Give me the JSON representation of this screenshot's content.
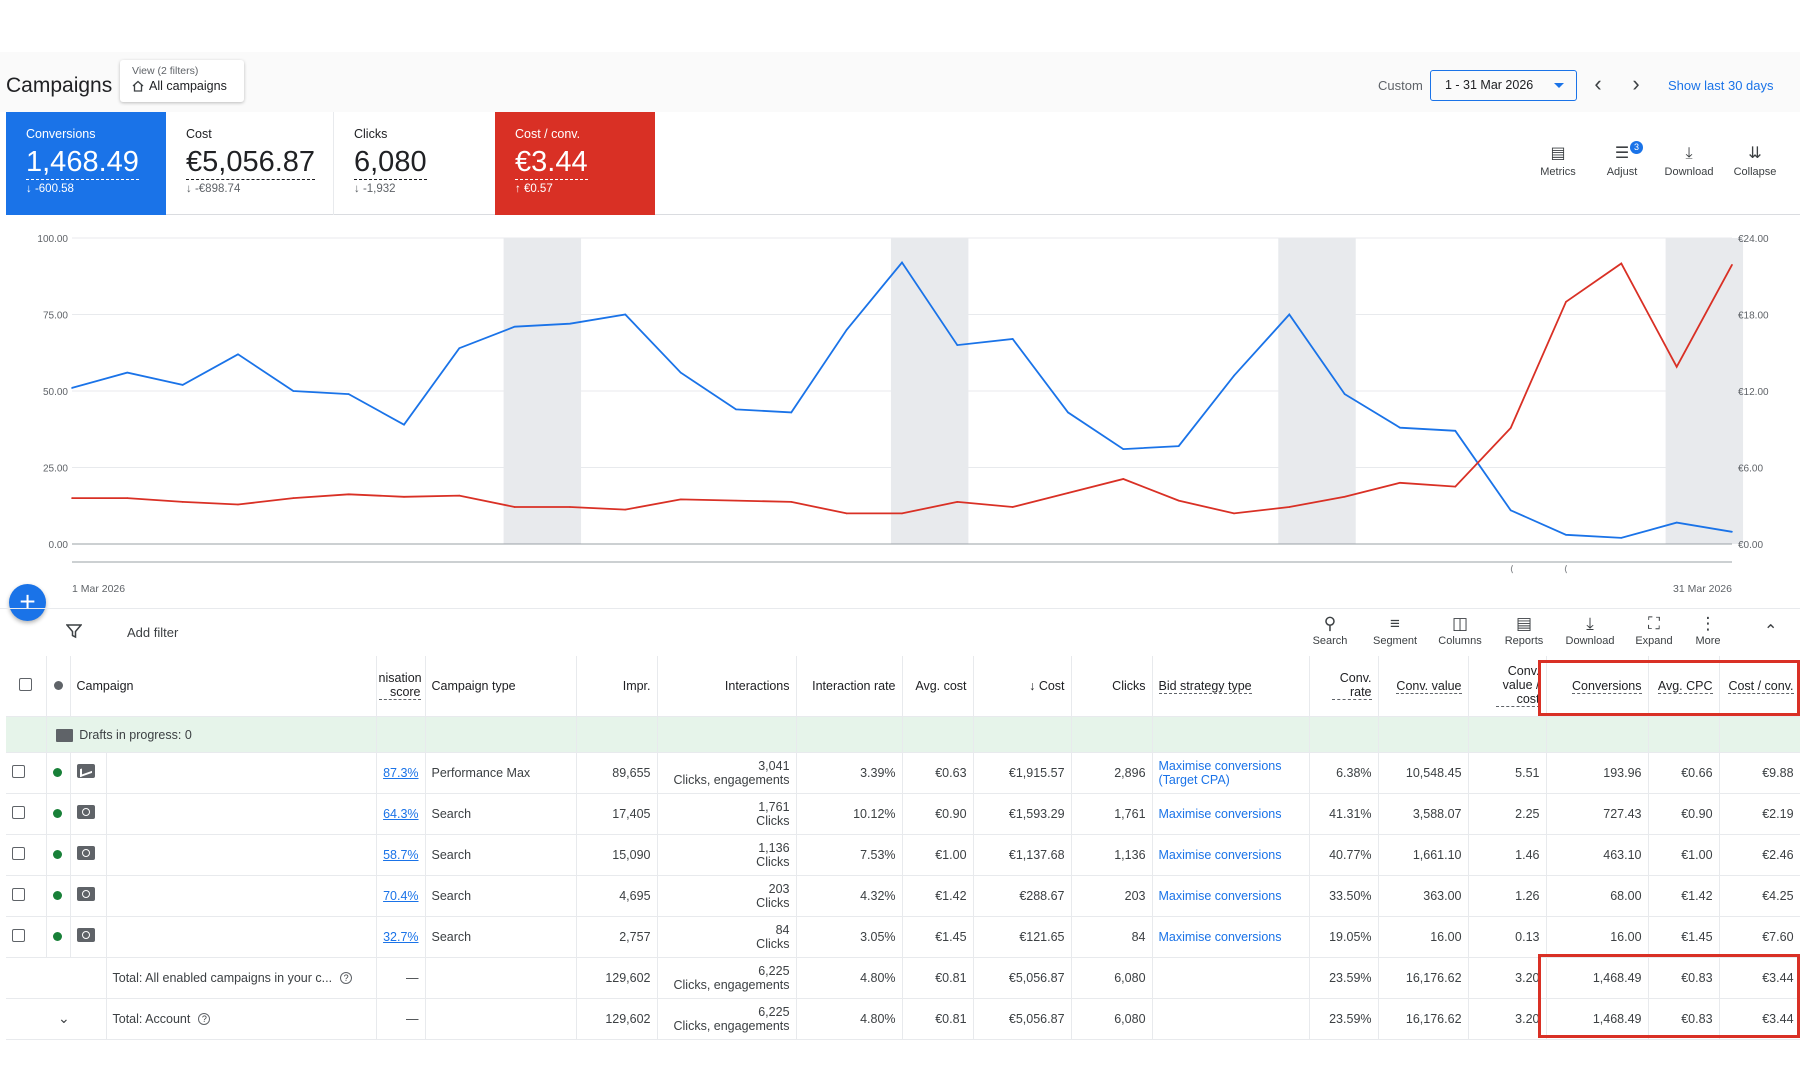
{
  "header": {
    "title": "Campaigns",
    "view_label": "View (2 filters)",
    "view_value": "All campaigns",
    "custom_label": "Custom",
    "date_range": "1 - 31 Mar 2026",
    "show_last": "Show last 30 days"
  },
  "scorecards": [
    {
      "label": "Conversions",
      "value": "1,468.49",
      "delta": "↓ -600.58",
      "color": "#1a73e8"
    },
    {
      "label": "Cost",
      "value": "€5,056.87",
      "delta": "↓ -€898.74"
    },
    {
      "label": "Clicks",
      "value": "6,080",
      "delta": "↓ -1,932"
    },
    {
      "label": "Cost / conv.",
      "value": "€3.44",
      "delta": "↑ €0.57",
      "color": "#d93025"
    }
  ],
  "chart_tools": [
    {
      "label": "Metrics",
      "icon": "metrics-icon"
    },
    {
      "label": "Adjust",
      "icon": "adjust-icon",
      "badge": "3"
    },
    {
      "label": "Download",
      "icon": "download-icon"
    },
    {
      "label": "Collapse",
      "icon": "collapse-icon"
    }
  ],
  "chart_data": {
    "type": "line",
    "x_start_label": "1 Mar 2026",
    "x_end_label": "31 Mar 2026",
    "y_left_ticks": [
      "0.00",
      "25.00",
      "50.00",
      "75.00",
      "100.00"
    ],
    "y_left_range": [
      0,
      100
    ],
    "y_right_ticks": [
      "€0.00",
      "€6.00",
      "€12.00",
      "€18.00",
      "€24.00"
    ],
    "y_right_range": [
      0,
      24
    ],
    "grid": true,
    "highlight_days": [
      9,
      16,
      23,
      30
    ],
    "series": [
      {
        "name": "Conversions",
        "axis": "left",
        "color": "#1a73e8",
        "values": [
          51,
          56,
          52,
          62,
          50,
          49,
          39,
          64,
          71,
          72,
          75,
          56,
          44,
          43,
          70,
          92,
          65,
          67,
          43,
          31,
          32,
          55,
          75,
          49,
          38,
          37,
          11,
          3,
          2,
          7,
          4
        ]
      },
      {
        "name": "Cost / conv.",
        "axis": "right",
        "color": "#d93025",
        "values": [
          3.6,
          3.6,
          3.3,
          3.1,
          3.6,
          3.9,
          3.7,
          3.8,
          2.9,
          2.9,
          2.7,
          3.5,
          3.4,
          3.3,
          2.4,
          2.4,
          3.3,
          2.9,
          4.0,
          5.1,
          3.4,
          2.4,
          2.9,
          3.7,
          4.8,
          4.5,
          9.1,
          19.0,
          22.0,
          13.9,
          21.9
        ]
      }
    ]
  },
  "table_tools": [
    {
      "label": "Search",
      "icon": "search-icon"
    },
    {
      "label": "Segment",
      "icon": "segment-icon"
    },
    {
      "label": "Columns",
      "icon": "columns-icon"
    },
    {
      "label": "Reports",
      "icon": "reports-icon"
    },
    {
      "label": "Download",
      "icon": "download-icon"
    },
    {
      "label": "Expand",
      "icon": "expand-icon"
    },
    {
      "label": "More",
      "icon": "more-icon"
    }
  ],
  "filter": {
    "add_filter": "Add filter"
  },
  "table": {
    "columns": [
      "Campaign",
      "nisation score",
      "Campaign type",
      "Impr.",
      "Interactions",
      "Interaction rate",
      "Avg. cost",
      "Cost",
      "Clicks",
      "Bid strategy type",
      "Conv. rate",
      "Conv. value",
      "Conv. value / cost",
      "Conversions",
      "Avg. CPC",
      "Cost / conv."
    ],
    "drafts": "Drafts in progress: 0",
    "rows": [
      {
        "icon": "performance-max-icon",
        "score": "87.3%",
        "type": "Performance Max",
        "impr": "89,655",
        "inter_value": "3,041",
        "inter_unit": "Clicks, engagements",
        "rate": "3.39%",
        "avg_cost": "€0.63",
        "cost": "€1,915.57",
        "clicks": "2,896",
        "bid1": "Maximise conversions",
        "bid2": "(Target CPA)",
        "conv_rate": "6.38%",
        "conv_value": "10,548.45",
        "value_cost": "5.51",
        "conversions": "193.96",
        "avg_cpc": "€0.66",
        "cost_conv": "€9.88"
      },
      {
        "icon": "search-campaign-icon",
        "score": "64.3%",
        "type": "Search",
        "impr": "17,405",
        "inter_value": "1,761",
        "inter_unit": "Clicks",
        "rate": "10.12%",
        "avg_cost": "€0.90",
        "cost": "€1,593.29",
        "clicks": "1,761",
        "bid1": "Maximise conversions",
        "bid2": "",
        "conv_rate": "41.31%",
        "conv_value": "3,588.07",
        "value_cost": "2.25",
        "conversions": "727.43",
        "avg_cpc": "€0.90",
        "cost_conv": "€2.19"
      },
      {
        "icon": "search-campaign-icon",
        "score": "58.7%",
        "type": "Search",
        "impr": "15,090",
        "inter_value": "1,136",
        "inter_unit": "Clicks",
        "rate": "7.53%",
        "avg_cost": "€1.00",
        "cost": "€1,137.68",
        "clicks": "1,136",
        "bid1": "Maximise conversions",
        "bid2": "",
        "conv_rate": "40.77%",
        "conv_value": "1,661.10",
        "value_cost": "1.46",
        "conversions": "463.10",
        "avg_cpc": "€1.00",
        "cost_conv": "€2.46"
      },
      {
        "icon": "search-campaign-icon",
        "score": "70.4%",
        "type": "Search",
        "impr": "4,695",
        "inter_value": "203",
        "inter_unit": "Clicks",
        "rate": "4.32%",
        "avg_cost": "€1.42",
        "cost": "€288.67",
        "clicks": "203",
        "bid1": "Maximise conversions",
        "bid2": "",
        "conv_rate": "33.50%",
        "conv_value": "363.00",
        "value_cost": "1.26",
        "conversions": "68.00",
        "avg_cpc": "€1.42",
        "cost_conv": "€4.25"
      },
      {
        "icon": "search-campaign-icon",
        "score": "32.7%",
        "type": "Search",
        "impr": "2,757",
        "inter_value": "84",
        "inter_unit": "Clicks",
        "rate": "3.05%",
        "avg_cost": "€1.45",
        "cost": "€121.65",
        "clicks": "84",
        "bid1": "Maximise conversions",
        "bid2": "",
        "conv_rate": "19.05%",
        "conv_value": "16.00",
        "value_cost": "0.13",
        "conversions": "16.00",
        "avg_cpc": "€1.45",
        "cost_conv": "€7.60"
      }
    ],
    "totals": [
      {
        "label": "Total: All enabled campaigns in your c...",
        "score": "—",
        "impr": "129,602",
        "inter_value": "6,225",
        "inter_unit": "Clicks, engagements",
        "rate": "4.80%",
        "avg_cost": "€0.81",
        "cost": "€5,056.87",
        "clicks": "6,080",
        "conv_rate": "23.59%",
        "conv_value": "16,176.62",
        "value_cost": "3.20",
        "conversions": "1,468.49",
        "avg_cpc": "€0.83",
        "cost_conv": "€3.44"
      },
      {
        "label": "Total: Account",
        "score": "—",
        "impr": "129,602",
        "inter_value": "6,225",
        "inter_unit": "Clicks, engagements",
        "rate": "4.80%",
        "avg_cost": "€0.81",
        "cost": "€5,056.87",
        "clicks": "6,080",
        "conv_rate": "23.59%",
        "conv_value": "16,176.62",
        "value_cost": "3.20",
        "conversions": "1,468.49",
        "avg_cpc": "€0.83",
        "cost_conv": "€3.44"
      }
    ]
  }
}
